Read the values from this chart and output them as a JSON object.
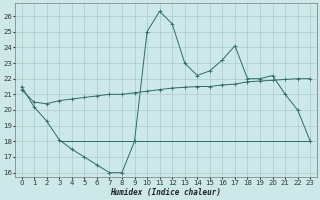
{
  "x": [
    0,
    1,
    2,
    3,
    4,
    5,
    6,
    7,
    8,
    9,
    10,
    11,
    12,
    13,
    14,
    15,
    16,
    17,
    18,
    19,
    20,
    21,
    22,
    23
  ],
  "line1": [
    21.5,
    20.2,
    19.3,
    18.1,
    17.5,
    17.0,
    16.5,
    16.0,
    16.0,
    18.0,
    25.0,
    26.3,
    25.5,
    23.0,
    22.2,
    22.5,
    23.2,
    24.1,
    22.0,
    22.0,
    22.2,
    21.0,
    20.0,
    18.0
  ],
  "line2": [
    21.3,
    20.5,
    20.4,
    20.6,
    20.7,
    20.8,
    20.9,
    21.0,
    21.0,
    21.1,
    21.2,
    21.3,
    21.4,
    21.45,
    21.5,
    21.5,
    21.6,
    21.65,
    21.8,
    21.85,
    21.9,
    21.95,
    22.0,
    22.0
  ],
  "hline_y": 18.0,
  "hline_x_start": 3,
  "hline_x_end": 23,
  "line_color": "#2a6e62",
  "bg_color": "#cde8e8",
  "grid_color": "#aacccc",
  "xlabel": "Humidex (Indice chaleur)",
  "ylim": [
    15.7,
    26.8
  ],
  "xlim": [
    -0.5,
    23.5
  ],
  "yticks": [
    16,
    17,
    18,
    19,
    20,
    21,
    22,
    23,
    24,
    25,
    26
  ],
  "xticks": [
    0,
    1,
    2,
    3,
    4,
    5,
    6,
    7,
    8,
    9,
    10,
    11,
    12,
    13,
    14,
    15,
    16,
    17,
    18,
    19,
    20,
    21,
    22,
    23
  ],
  "tick_fontsize": 5.0,
  "xlabel_fontsize": 5.5
}
